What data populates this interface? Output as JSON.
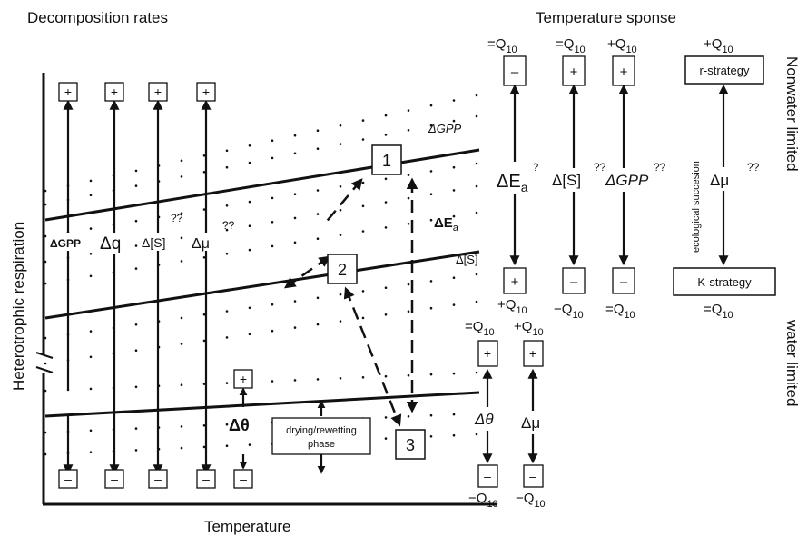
{
  "titles": {
    "decomposition": "Decomposition rates",
    "temperature_response": "Temperature sponse"
  },
  "axes": {
    "x_label": "Temperature",
    "y_label": "Heterotrophic respiration"
  },
  "side_labels": {
    "nonwater": "Nonwater limited",
    "water": "water limited"
  },
  "signs": {
    "plus": "+",
    "minus": "–"
  },
  "states": {
    "one": "1",
    "two": "2",
    "three": "3"
  },
  "phase_box": {
    "line1": "drying/rewetting",
    "line2": "phase"
  },
  "left_arrows": {
    "gpp": "ΔGPP",
    "q": "Δq",
    "s": "Δ[S]",
    "mu": "Δμ",
    "theta": "Δθ"
  },
  "line_labels": {
    "gpp": "ΔGPP",
    "ea": "ΔE",
    "ea_sub": "a",
    "s": "Δ[S]"
  },
  "unknown": "??",
  "q10": {
    "eq": "=Q",
    "plus": "+Q",
    "minus": "−Q",
    "sub": "10"
  },
  "right_arrows": {
    "ea": "ΔE",
    "ea_sub": "a",
    "s": "Δ[S]",
    "gpp": "ΔGPP",
    "theta": "Δθ",
    "mu": "Δμ"
  },
  "strategy": {
    "r": "r-strategy",
    "k": "K-strategy",
    "succession": "ecological succesion",
    "mu": "Δμ"
  }
}
